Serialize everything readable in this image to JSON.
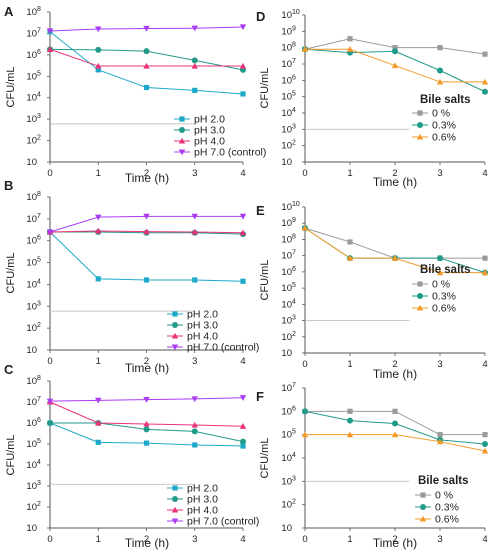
{
  "chart_data": [
    {
      "panel": "A",
      "type": "line",
      "ylabel": "CFU/mL",
      "xlabel": "Time (h)",
      "yscale": "log",
      "x": [
        0,
        1,
        2,
        3,
        4
      ],
      "xticks": [
        "0",
        "1",
        "2",
        "3",
        "4"
      ],
      "ylim": [
        10,
        100000000
      ],
      "ytick_exponents": [
        "8",
        "7",
        "6",
        "5",
        "4",
        "3",
        "2",
        ""
      ],
      "legend_placement": "bottom-right",
      "detection_limit": 600,
      "series": [
        {
          "name": "pH 2.0",
          "color": "#1fa9c9",
          "marker": "square",
          "values": [
            12000000,
            200000,
            30000,
            22000,
            15000
          ]
        },
        {
          "name": "pH 3.0",
          "color": "#229a8a",
          "marker": "circle",
          "values": [
            1800000,
            1700000,
            1500000,
            550000,
            200000
          ]
        },
        {
          "name": "pH 4.0",
          "color": "#e8327a",
          "marker": "triangle-up",
          "values": [
            1800000,
            300000,
            300000,
            300000,
            300000
          ]
        },
        {
          "name": "pH 7.0 (control)",
          "color": "#a93cf2",
          "marker": "triangle-down",
          "values": [
            13000000,
            16000000,
            17000000,
            17500000,
            20000000
          ]
        }
      ]
    },
    {
      "panel": "B",
      "type": "line",
      "ylabel": "CFU/mL",
      "xlabel": "Time (h)",
      "yscale": "log",
      "x": [
        0,
        1,
        2,
        3,
        4
      ],
      "xticks": [
        "0",
        "1",
        "2",
        "3",
        "4"
      ],
      "ylim": [
        10,
        100000000
      ],
      "ytick_exponents": [
        "8",
        "7",
        "6",
        "5",
        "4",
        "3",
        "2",
        ""
      ],
      "legend_placement": "bottom-right",
      "detection_limit": 600,
      "series": [
        {
          "name": "pH 2.0",
          "color": "#1fa9c9",
          "marker": "square",
          "values": [
            2500000,
            18000,
            16000,
            16000,
            14000
          ]
        },
        {
          "name": "pH 3.0",
          "color": "#229a8a",
          "marker": "circle",
          "values": [
            2500000,
            2500000,
            2300000,
            2300000,
            2000000
          ]
        },
        {
          "name": "pH 4.0",
          "color": "#e8327a",
          "marker": "triangle-up",
          "values": [
            2500000,
            2800000,
            2600000,
            2500000,
            2300000
          ]
        },
        {
          "name": "pH 7.0 (control)",
          "color": "#a93cf2",
          "marker": "triangle-down",
          "values": [
            2500000,
            12000000,
            13000000,
            13000000,
            13000000
          ]
        }
      ]
    },
    {
      "panel": "C",
      "type": "line",
      "ylabel": "CFU/mL",
      "xlabel": "Time (h)",
      "yscale": "log",
      "x": [
        0,
        1,
        2,
        3,
        4
      ],
      "xticks": [
        "0",
        "1",
        "2",
        "3",
        "4"
      ],
      "ylim": [
        10,
        100000000
      ],
      "ytick_exponents": [
        "8",
        "7",
        "6",
        "5",
        "4",
        "3",
        "2",
        ""
      ],
      "legend_placement": "bottom-right",
      "detection_limit": 1200,
      "series": [
        {
          "name": "pH 2.0",
          "color": "#1fa9c9",
          "marker": "square",
          "values": [
            1000000,
            120000,
            110000,
            90000,
            80000
          ]
        },
        {
          "name": "pH 3.0",
          "color": "#229a8a",
          "marker": "circle",
          "values": [
            1000000,
            1000000,
            500000,
            400000,
            130000
          ]
        },
        {
          "name": "pH 4.0",
          "color": "#e8327a",
          "marker": "triangle-up",
          "values": [
            10000000,
            1000000,
            900000,
            800000,
            700000
          ]
        },
        {
          "name": "pH 7.0 (control)",
          "color": "#a93cf2",
          "marker": "triangle-down",
          "values": [
            11000000,
            12000000,
            13000000,
            14000000,
            16000000
          ]
        }
      ]
    },
    {
      "panel": "D",
      "type": "line",
      "ylabel": "CFU/mL",
      "xlabel": "Time (h)",
      "yscale": "log",
      "x": [
        0,
        1,
        2,
        3,
        4
      ],
      "xticks": [
        "0",
        "1",
        "2",
        "3",
        "4"
      ],
      "ylim": [
        10,
        10000000000
      ],
      "ytick_exponents": [
        "10",
        "9",
        "8",
        "7",
        "6",
        "5",
        "4",
        "3",
        "2",
        ""
      ],
      "legend_title": "Bile salts",
      "legend_placement": "bottom-right",
      "detection_limit": 1000,
      "series": [
        {
          "name": "0 %",
          "color": "#9a9a9a",
          "marker": "square",
          "values": [
            80000000,
            350000000,
            100000000,
            100000000,
            40000000
          ]
        },
        {
          "name": "0.3%",
          "color": "#229a8a",
          "marker": "circle",
          "values": [
            80000000,
            50000000,
            60000000,
            4000000,
            200000
          ]
        },
        {
          "name": "0.6%",
          "color": "#f39a2a",
          "marker": "triangle-up",
          "values": [
            80000000,
            80000000,
            8000000,
            800000,
            800000
          ]
        }
      ]
    },
    {
      "panel": "E",
      "type": "line",
      "ylabel": "CFU/mL",
      "xlabel": "Time (h)",
      "yscale": "log",
      "x": [
        0,
        1,
        2,
        3,
        4
      ],
      "xticks": [
        "0",
        "1",
        "2",
        "3",
        "4"
      ],
      "ylim": [
        10,
        10000000000
      ],
      "ytick_exponents": [
        "10",
        "9",
        "8",
        "7",
        "6",
        "5",
        "4",
        "3",
        "2",
        ""
      ],
      "legend_title": "Bile salts",
      "legend_placement": "bottom-right",
      "detection_limit": 1000,
      "series": [
        {
          "name": "0 %",
          "color": "#9a9a9a",
          "marker": "square",
          "values": [
            500000000,
            70000000,
            7000000,
            7000000,
            7000000
          ]
        },
        {
          "name": "0.3%",
          "color": "#229a8a",
          "marker": "circle",
          "values": [
            500000000,
            7000000,
            7000000,
            7000000,
            900000
          ]
        },
        {
          "name": "0.6%",
          "color": "#f39a2a",
          "marker": "triangle-up",
          "values": [
            500000000,
            7000000,
            7000000,
            900000,
            900000
          ]
        }
      ]
    },
    {
      "panel": "F",
      "type": "line",
      "ylabel": "CFU/mL",
      "xlabel": "Time (h)",
      "yscale": "log",
      "x": [
        0,
        1,
        2,
        3,
        4
      ],
      "xticks": [
        "0",
        "1",
        "2",
        "3",
        "4"
      ],
      "ylim": [
        10,
        10000000
      ],
      "ytick_exponents": [
        "7",
        "6",
        "5",
        "4",
        "3",
        "2",
        ""
      ],
      "legend_title": "Bile salts",
      "legend_placement": "bottom-right",
      "detection_limit": 1000,
      "series": [
        {
          "name": "0 %",
          "color": "#9a9a9a",
          "marker": "square",
          "values": [
            1000000,
            1000000,
            1000000,
            100000,
            100000
          ]
        },
        {
          "name": "0.3%",
          "color": "#229a8a",
          "marker": "circle",
          "values": [
            1000000,
            400000,
            300000,
            60000,
            40000
          ]
        },
        {
          "name": "0.6%",
          "color": "#f39a2a",
          "marker": "triangle-up",
          "values": [
            100000,
            100000,
            100000,
            50000,
            20000
          ]
        }
      ]
    }
  ]
}
